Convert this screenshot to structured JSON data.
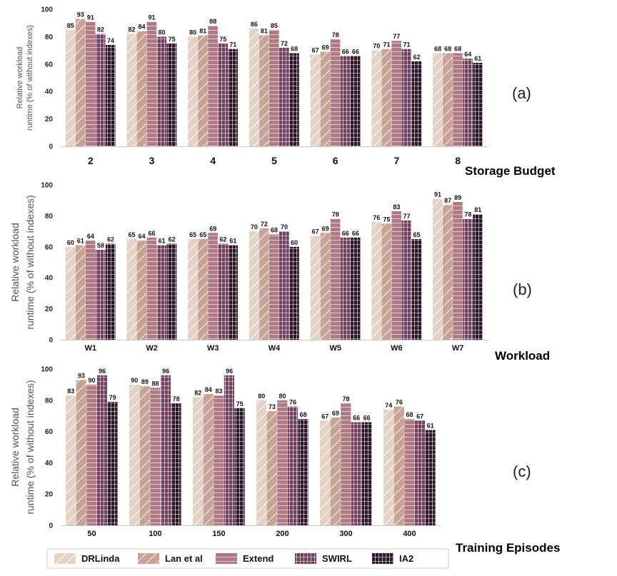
{
  "colors": {
    "DRLinda": "#e3d3c4",
    "Lan et al": "#c7a295",
    "Extend": "#b07a85",
    "SWIRL": "#6f3f5c",
    "IA2": "#2a1626",
    "highlight": "#e0201b"
  },
  "legend": {
    "items": [
      {
        "name": "DRLinda",
        "pattern": "diag"
      },
      {
        "name": "Lan et al",
        "pattern": "diag"
      },
      {
        "name": "Extend",
        "pattern": "hlines"
      },
      {
        "name": "SWIRL",
        "pattern": "grid"
      },
      {
        "name": "IA2",
        "pattern": "grid"
      }
    ]
  },
  "chart_data": [
    {
      "type": "bar",
      "panel": "(a)",
      "ylabel_line1": "Relative workload",
      "ylabel_line2": "runtime (% of without indexes)",
      "xlabel": "Storage Budget",
      "ylim": [
        0,
        100
      ],
      "yticks": [
        0,
        20,
        40,
        60,
        80,
        100
      ],
      "categories": [
        "2",
        "3",
        "4",
        "5",
        "6",
        "7",
        "8"
      ],
      "highlight_category": "",
      "series": [
        {
          "name": "DRLinda",
          "values": [
            85,
            82,
            80,
            86,
            67,
            70,
            68
          ]
        },
        {
          "name": "Lan et al",
          "values": [
            93,
            84,
            81,
            81,
            69,
            71,
            68
          ]
        },
        {
          "name": "Extend",
          "values": [
            91,
            91,
            88,
            85,
            78,
            77,
            68
          ]
        },
        {
          "name": "SWIRL",
          "values": [
            82,
            80,
            75,
            72,
            66,
            71,
            64
          ]
        },
        {
          "name": "IA2",
          "values": [
            74,
            75,
            71,
            68,
            66,
            62,
            61
          ]
        }
      ]
    },
    {
      "type": "bar",
      "panel": "(b)",
      "ylabel_line1": "Relative workload",
      "ylabel_line2": "runtime (% of without indexes)",
      "xlabel": "Workload",
      "ylim": [
        0,
        100
      ],
      "yticks": [
        0,
        20,
        40,
        60,
        80,
        100
      ],
      "categories": [
        "W1",
        "W2",
        "W3",
        "W4",
        "W5",
        "W6",
        "W7"
      ],
      "highlight_category": "W7",
      "series": [
        {
          "name": "DRLinda",
          "values": [
            60,
            65,
            65,
            70,
            67,
            76,
            91
          ]
        },
        {
          "name": "Lan et al",
          "values": [
            61,
            64,
            65,
            72,
            69,
            75,
            87
          ]
        },
        {
          "name": "Extend",
          "values": [
            64,
            66,
            69,
            68,
            78,
            83,
            89
          ]
        },
        {
          "name": "SWIRL",
          "values": [
            58,
            61,
            62,
            70,
            66,
            77,
            78
          ]
        },
        {
          "name": "IA2",
          "values": [
            62,
            62,
            61,
            60,
            66,
            65,
            81
          ]
        }
      ]
    },
    {
      "type": "bar",
      "panel": "(c)",
      "ylabel_line1": "Relative workload",
      "ylabel_line2": "runtime (% of without indexes)",
      "xlabel": "Training Episodes",
      "ylim": [
        0,
        100
      ],
      "yticks": [
        0,
        20,
        40,
        60,
        80,
        100
      ],
      "categories": [
        "50",
        "100",
        "150",
        "200",
        "300",
        "400"
      ],
      "highlight_category": "",
      "series": [
        {
          "name": "DRLinda",
          "values": [
            83,
            90,
            82,
            80,
            67,
            74
          ]
        },
        {
          "name": "Lan et al",
          "values": [
            93,
            89,
            84,
            73,
            69,
            76
          ]
        },
        {
          "name": "Extend",
          "values": [
            90,
            88,
            83,
            80,
            78,
            68
          ]
        },
        {
          "name": "SWIRL",
          "values": [
            96,
            96,
            96,
            76,
            66,
            67
          ]
        },
        {
          "name": "IA2",
          "values": [
            79,
            78,
            75,
            68,
            66,
            61
          ]
        }
      ]
    }
  ]
}
